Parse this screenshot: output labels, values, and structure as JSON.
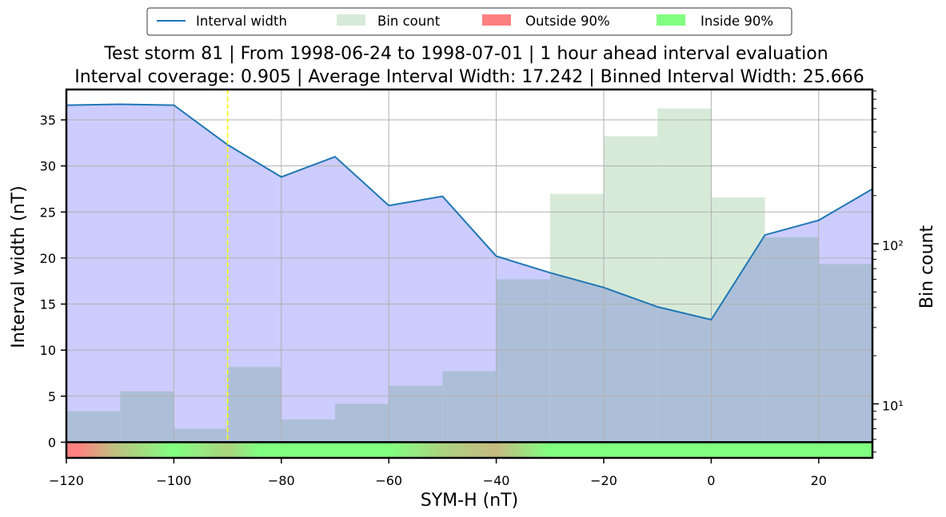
{
  "chart_data": {
    "type": "line",
    "title_lines": [
      "Test storm 81 | From 1998-06-24 to 1998-07-01 | 1 hour ahead interval evaluation",
      "Interval coverage: 0.905 | Average Interval Width: 17.242 | Binned Interval Width: 25.666"
    ],
    "xlabel": "SYM-H (nT)",
    "ylabel": "Interval width (nT)",
    "y2label": "Bin count",
    "xlim": [
      -120,
      30
    ],
    "ylim": [
      -1.7,
      38.3
    ],
    "y2lim_log": [
      4.6,
      920
    ],
    "y2scale": "log",
    "x_ticks": [
      -120,
      -100,
      -80,
      -60,
      -40,
      -20,
      0,
      20
    ],
    "x_tick_labels": [
      "−120",
      "−100",
      "−80",
      "−60",
      "−40",
      "−20",
      "0",
      "20"
    ],
    "y_ticks": [
      0,
      5,
      10,
      15,
      20,
      25,
      30,
      35
    ],
    "y_tick_labels": [
      "0",
      "5",
      "10",
      "15",
      "20",
      "25",
      "30",
      "35"
    ],
    "y2_major_ticks": [
      10,
      100
    ],
    "y2_tick_labels": [
      "10¹",
      "10²"
    ],
    "grid": true,
    "legend": {
      "placement": "top-center outside",
      "entries": [
        {
          "label": "Interval width",
          "kind": "line",
          "color": "#1f77b4"
        },
        {
          "label": "Bin count",
          "kind": "patch",
          "color": "#d7ead8"
        },
        {
          "label": "Outside 90%",
          "kind": "patch",
          "color": "#ff8080"
        },
        {
          "label": "Inside 90%",
          "kind": "patch",
          "color": "#80ff80"
        }
      ]
    },
    "series": [
      {
        "name": "Interval width",
        "kind": "line",
        "color": "#1f77b4",
        "fill_color": "#ccccff",
        "x": [
          -120,
          -110,
          -100,
          -90,
          -80,
          -70,
          -60,
          -50,
          -40,
          -30,
          -20,
          -10,
          0,
          10,
          20,
          30
        ],
        "y": [
          36.6,
          36.7,
          36.6,
          32.3,
          28.8,
          31.0,
          25.7,
          26.7,
          20.2,
          18.4,
          16.8,
          14.7,
          13.3,
          22.5,
          24.1,
          27.5
        ]
      },
      {
        "name": "Bin count",
        "kind": "histogram",
        "axis": "right",
        "color": "#d7ead8",
        "overlap_color": "#adbfd8",
        "bin_edges": [
          -120,
          -110,
          -100,
          -90,
          -80,
          -70,
          -60,
          -50,
          -40,
          -30,
          -20,
          -10,
          0,
          10,
          20,
          30
        ],
        "values": [
          9,
          12,
          7,
          17,
          8,
          10,
          13,
          16,
          60,
          205,
          470,
          700,
          195,
          110,
          75
        ]
      }
    ],
    "coverage_bar": {
      "outside_color": "#ff8080",
      "inside_color": "#80ff80",
      "stops": [
        {
          "x": -120,
          "mix": 1.0
        },
        {
          "x": -118,
          "mix": 1.0
        },
        {
          "x": -111,
          "mix": 0.5
        },
        {
          "x": -100,
          "mix": 0.0
        },
        {
          "x": -96,
          "mix": 0.15
        },
        {
          "x": -90,
          "mix": 0.35
        },
        {
          "x": -84,
          "mix": 0.0
        },
        {
          "x": -60,
          "mix": 0.0
        },
        {
          "x": -50,
          "mix": 0.35
        },
        {
          "x": -40,
          "mix": 0.55
        },
        {
          "x": -30,
          "mix": 0.0
        },
        {
          "x": 30,
          "mix": 0.0
        }
      ]
    },
    "storm_marker": {
      "x": -90,
      "color": "#ffff00",
      "style": "dashed"
    }
  }
}
